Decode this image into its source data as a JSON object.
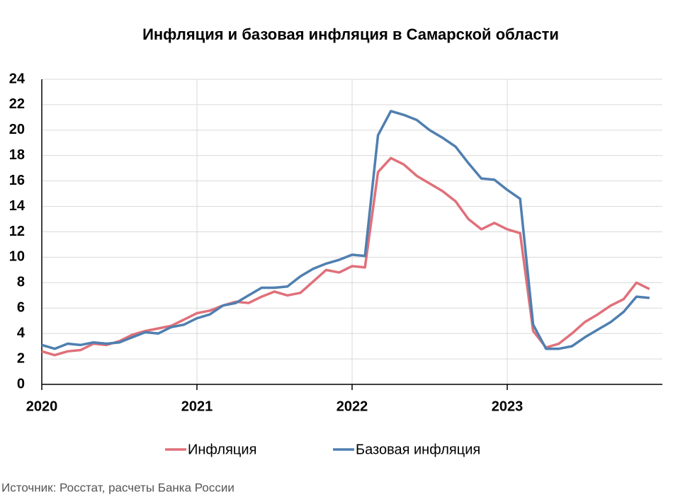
{
  "chart_data": {
    "type": "line",
    "title": "Инфляция и базовая инфляция в Самарской области",
    "source": "Источник: Росстат, расчеты Банка России",
    "x": [
      2020,
      2020.083,
      2020.167,
      2020.25,
      2020.333,
      2020.417,
      2020.5,
      2020.583,
      2020.667,
      2020.75,
      2020.833,
      2020.917,
      2021,
      2021.083,
      2021.167,
      2021.25,
      2021.333,
      2021.417,
      2021.5,
      2021.583,
      2021.667,
      2021.75,
      2021.833,
      2021.917,
      2022,
      2022.083,
      2022.167,
      2022.25,
      2022.333,
      2022.417,
      2022.5,
      2022.583,
      2022.667,
      2022.75,
      2022.833,
      2022.917,
      2023,
      2023.083,
      2023.167,
      2023.25,
      2023.333,
      2023.417,
      2023.5,
      2023.583,
      2023.667,
      2023.75,
      2023.833,
      2023.917
    ],
    "series": [
      {
        "name": "Инфляция",
        "color": "#e0707a",
        "values": [
          2.6,
          2.3,
          2.6,
          2.7,
          3.2,
          3.1,
          3.4,
          3.9,
          4.2,
          4.4,
          4.6,
          5.1,
          5.6,
          5.8,
          6.2,
          6.5,
          6.4,
          6.9,
          7.3,
          7.0,
          7.2,
          8.1,
          9.0,
          8.8,
          9.3,
          9.2,
          16.7,
          17.8,
          17.3,
          16.4,
          15.8,
          15.2,
          14.4,
          13.0,
          12.2,
          12.7,
          12.2,
          11.9,
          4.2,
          2.9,
          3.2,
          4.0,
          4.9,
          5.5,
          6.2,
          6.7,
          8.0,
          7.5
        ]
      },
      {
        "name": "Базовая инфляция",
        "color": "#4f7fb0",
        "values": [
          3.1,
          2.8,
          3.2,
          3.1,
          3.3,
          3.2,
          3.3,
          3.7,
          4.1,
          4.0,
          4.5,
          4.7,
          5.2,
          5.5,
          6.2,
          6.4,
          7.0,
          7.6,
          7.6,
          7.7,
          8.5,
          9.1,
          9.5,
          9.8,
          10.2,
          10.1,
          19.6,
          21.5,
          21.2,
          20.8,
          20.0,
          19.4,
          18.7,
          17.4,
          16.2,
          16.1,
          15.3,
          14.6,
          4.7,
          2.8,
          2.8,
          3.0,
          3.7,
          4.3,
          4.9,
          5.7,
          6.9,
          6.8
        ]
      }
    ],
    "xlim": [
      2020,
      2024
    ],
    "xticks": [
      2020,
      2021,
      2022,
      2023
    ],
    "ylim": [
      0,
      24
    ],
    "yticks": [
      0,
      2,
      4,
      6,
      8,
      10,
      12,
      14,
      16,
      18,
      20,
      22,
      24
    ],
    "grid": true
  }
}
